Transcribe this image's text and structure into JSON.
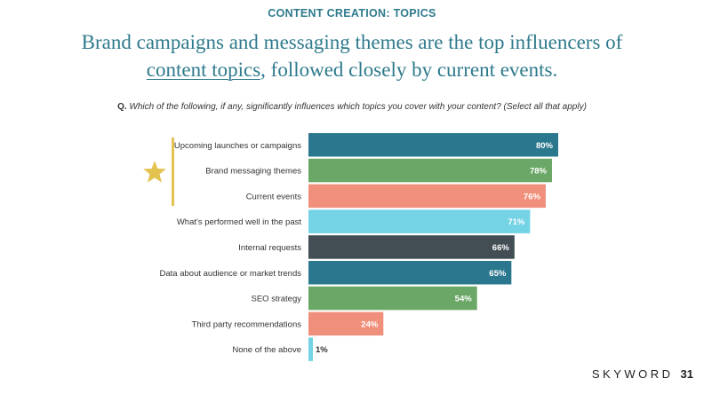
{
  "header": {
    "eyebrow": "CONTENT CREATION: TOPICS",
    "headline_part1": "Brand campaigns and messaging themes are the top influencers of",
    "headline_underlined": "content topics",
    "headline_part2": ", followed closely by current events."
  },
  "question": {
    "prefix": "Q.",
    "text": "Which of the following, if any, significantly influences which topics you cover with your content? (Select all that apply)"
  },
  "footer": {
    "brand": "SKYWORD",
    "page_number": "31"
  },
  "colors": {
    "accent": "#2e7a8c",
    "highlight": "#e3c24f"
  },
  "chart_data": {
    "type": "bar",
    "orientation": "horizontal",
    "categories": [
      "Upcoming launches or campaigns",
      "Brand messaging themes",
      "Current events",
      "What's performed well in the past",
      "Internal requests",
      "Data about audience or market trends",
      "SEO strategy",
      "Third party recommendations",
      "None of the above"
    ],
    "values": [
      80,
      78,
      76,
      71,
      66,
      65,
      54,
      24,
      1
    ],
    "value_labels": [
      "80%",
      "78%",
      "76%",
      "71%",
      "66%",
      "65%",
      "54%",
      "24%",
      "1%"
    ],
    "bar_colors": [
      "#2b788e",
      "#6ba766",
      "#f0907c",
      "#74d3e5",
      "#424e53",
      "#2b788e",
      "#6ba766",
      "#f0907c",
      "#74d3e5"
    ],
    "value_label_colors": [
      "#ffffff",
      "#ffffff",
      "#ffffff",
      "#ffffff",
      "#ffffff",
      "#ffffff",
      "#ffffff",
      "#ffffff",
      "#333333"
    ],
    "xlim": [
      0,
      100
    ],
    "grid": false,
    "highlighted_categories": [
      0,
      1,
      2
    ]
  }
}
